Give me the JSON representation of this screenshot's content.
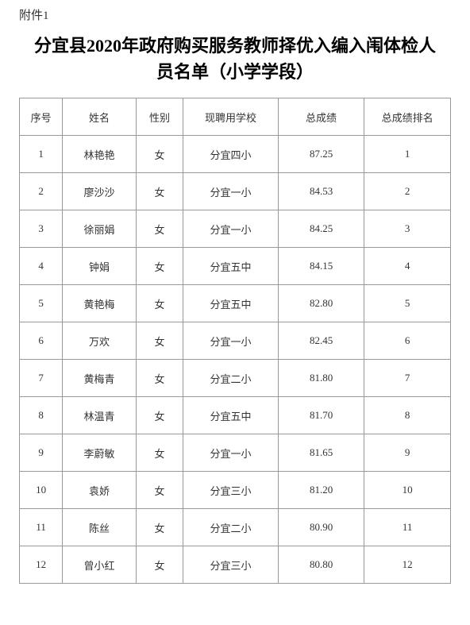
{
  "attachment_label": "附件1",
  "title": "分宜县2020年政府购买服务教师择优入编入闱体检人员名单（小学学段）",
  "table": {
    "columns": [
      "序号",
      "姓名",
      "性别",
      "现聘用学校",
      "总成绩",
      "总成绩排名"
    ],
    "rows": [
      [
        "1",
        "林艳艳",
        "女",
        "分宜四小",
        "87.25",
        "1"
      ],
      [
        "2",
        "廖沙沙",
        "女",
        "分宜一小",
        "84.53",
        "2"
      ],
      [
        "3",
        "徐丽娟",
        "女",
        "分宜一小",
        "84.25",
        "3"
      ],
      [
        "4",
        "钟娟",
        "女",
        "分宜五中",
        "84.15",
        "4"
      ],
      [
        "5",
        "黄艳梅",
        "女",
        "分宜五中",
        "82.80",
        "5"
      ],
      [
        "6",
        "万欢",
        "女",
        "分宜一小",
        "82.45",
        "6"
      ],
      [
        "7",
        "黄梅青",
        "女",
        "分宜二小",
        "81.80",
        "7"
      ],
      [
        "8",
        "林温青",
        "女",
        "分宜五中",
        "81.70",
        "8"
      ],
      [
        "9",
        "李蔚敏",
        "女",
        "分宜一小",
        "81.65",
        "9"
      ],
      [
        "10",
        "袁娇",
        "女",
        "分宜三小",
        "81.20",
        "10"
      ],
      [
        "11",
        "陈丝",
        "女",
        "分宜二小",
        "80.90",
        "11"
      ],
      [
        "12",
        "曾小红",
        "女",
        "分宜三小",
        "80.80",
        "12"
      ]
    ]
  }
}
